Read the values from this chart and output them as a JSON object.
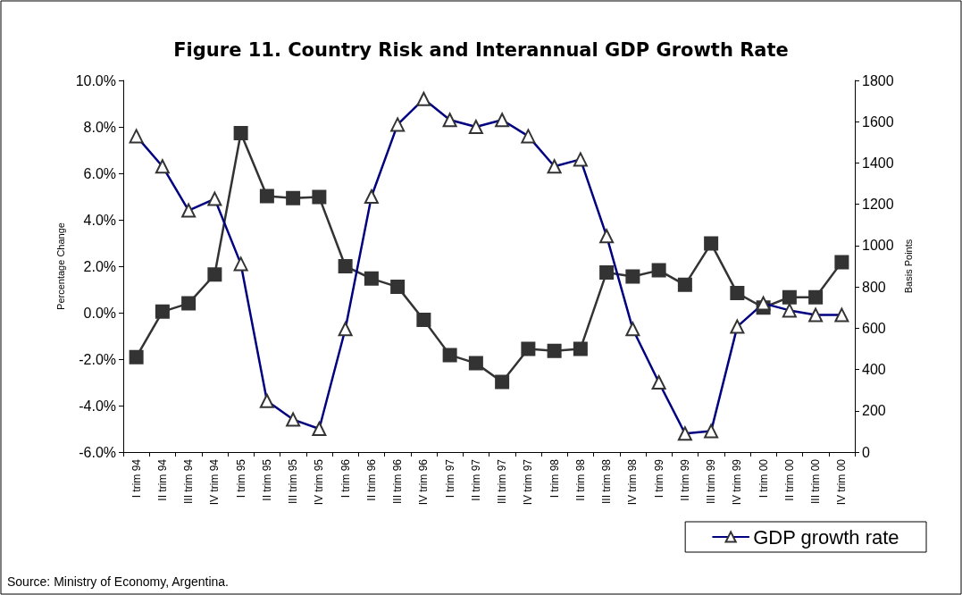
{
  "chart_data": {
    "type": "line",
    "title": "Figure 11. Country Risk and Interannual GDP Growth Rate",
    "ylabel": "Percentage Change",
    "y2label": "Basis Points",
    "categories": [
      "I trim 94",
      "II trim 94",
      "III trim 94",
      "IV trim 94",
      "I trim 95",
      "II trim 95",
      "III trim 95",
      "IV trim 95",
      "I trim 96",
      "II trim 96",
      "III trim 96",
      "IV trim 96",
      "I trim 97",
      "II trim 97",
      "III trim 97",
      "IV trim 97",
      "I trim 98",
      "II trim 98",
      "III trim 98",
      "IV trim 98",
      "I trim 99",
      "II trim 99",
      "III trim 99",
      "IV trim 99",
      "I trim 00",
      "II trim 00",
      "III trim 00",
      "IV trim 00"
    ],
    "series": [
      {
        "name": "GDP growth rate",
        "color": "#000080",
        "marker": "triangle",
        "values": [
          7.6,
          6.3,
          4.4,
          4.9,
          2.1,
          -3.8,
          -4.6,
          -5.0,
          -0.7,
          5.0,
          8.1,
          9.2,
          8.3,
          8.0,
          8.3,
          7.6,
          6.3,
          6.6,
          3.3,
          -0.7,
          -3.0,
          -5.2,
          -5.1,
          -0.6,
          0.4,
          0.1,
          -0.1,
          -0.1
        ]
      },
      {
        "color": "#333333",
        "marker": "square",
        "axis": "y2",
        "values": [
          460,
          680,
          720,
          860,
          1545,
          1240,
          1230,
          1235,
          900,
          840,
          800,
          640,
          470,
          430,
          340,
          500,
          490,
          500,
          870,
          850,
          880,
          810,
          1010,
          770,
          700,
          750,
          750,
          920
        ]
      }
    ],
    "ylim": [
      -6,
      10
    ],
    "yticks": [
      {
        "value": -6,
        "label": "-6.0%"
      },
      {
        "value": -4,
        "label": "-4.0%"
      },
      {
        "value": -2,
        "label": "-2.0%"
      },
      {
        "value": 0,
        "label": "0.0%"
      },
      {
        "value": 2,
        "label": "2.0%"
      },
      {
        "value": 4,
        "label": "4.0%"
      },
      {
        "value": 6,
        "label": "6.0%"
      },
      {
        "value": 8,
        "label": "8.0%"
      },
      {
        "value": 10,
        "label": "10.0%"
      }
    ],
    "y2lim": [
      0,
      1800
    ],
    "y2ticks": [
      0,
      200,
      400,
      600,
      800,
      1000,
      1200,
      1400,
      1600,
      1800
    ],
    "grid": false,
    "legend": "bottom right",
    "line_style": "solid",
    "annotations": [
      "Source: Ministry of Economy, Argentina."
    ]
  }
}
